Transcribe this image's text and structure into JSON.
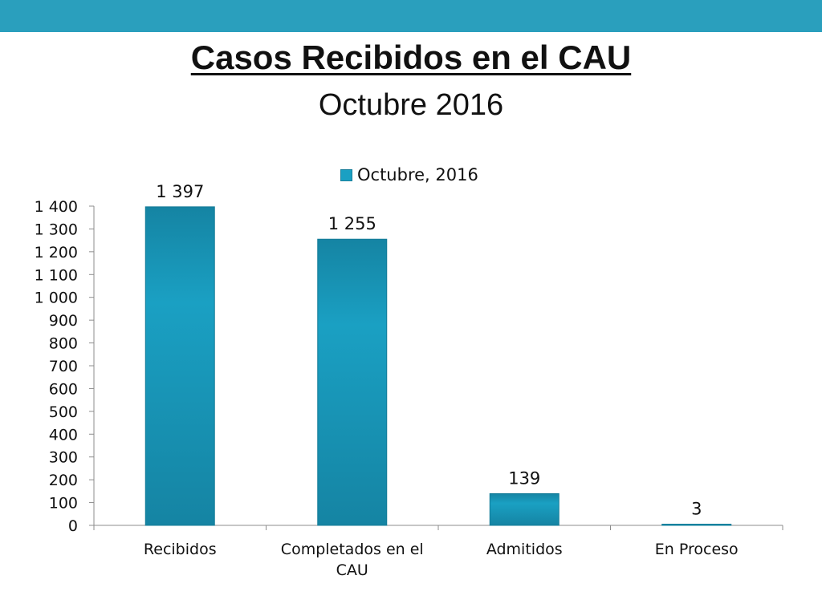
{
  "colors": {
    "top_bar": "#2a9fbd",
    "bar": "#1aa0c3",
    "bar_dark": "#1584a3",
    "axis": "#8c8c8c"
  },
  "header": {
    "title": "Casos Recibidos en el CAU",
    "subtitle": "Octubre 2016"
  },
  "chart_data": {
    "type": "bar",
    "categories": [
      "Recibidos",
      "Completados en el CAU",
      "Admitidos",
      "En Proceso"
    ],
    "series": [
      {
        "name": "Octubre, 2016",
        "values": [
          1397,
          1255,
          139,
          3
        ]
      }
    ],
    "data_labels": [
      "1 397",
      "1 255",
      "139",
      "3"
    ],
    "ylim": [
      0,
      1400
    ],
    "yticks": [
      0,
      100,
      200,
      300,
      400,
      500,
      600,
      700,
      800,
      900,
      1000,
      1100,
      1200,
      1300,
      1400
    ],
    "ytick_labels": [
      "0",
      "100",
      "200",
      "300",
      "400",
      "500",
      "600",
      "700",
      "800",
      "900",
      "1 000",
      "1 100",
      "1 200",
      "1 300",
      "1 400"
    ],
    "grid": false,
    "legend": "top"
  }
}
